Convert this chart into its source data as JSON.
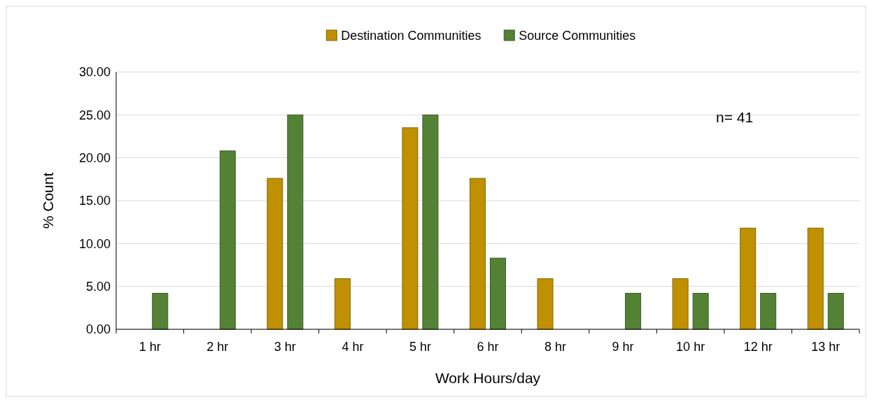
{
  "chart_data": {
    "type": "bar",
    "xlabel": "Work Hours/day",
    "ylabel": "% Count",
    "categories": [
      "1 hr",
      "2 hr",
      "3 hr",
      "4 hr",
      "5 hr",
      "6 hr",
      "8 hr",
      "9 hr",
      "10 hr",
      "12 hr",
      "13 hr"
    ],
    "series": [
      {
        "name": "Destination Communities",
        "color": "#bf9000",
        "values": [
          0,
          0,
          17.6,
          5.9,
          23.5,
          17.6,
          5.9,
          0,
          5.9,
          11.8,
          11.8
        ]
      },
      {
        "name": "Source Communities",
        "color": "#548235",
        "values": [
          4.2,
          20.8,
          25,
          0,
          25,
          8.3,
          0,
          4.2,
          4.2,
          4.2,
          4.2
        ]
      }
    ],
    "ylim": [
      0,
      30
    ],
    "yticks": [
      {
        "value": 0,
        "label": "0.00"
      },
      {
        "value": 5,
        "label": "5.00"
      },
      {
        "value": 10,
        "label": "10.00"
      },
      {
        "value": 15,
        "label": "15.00"
      },
      {
        "value": 20,
        "label": "20.00"
      },
      {
        "value": 25,
        "label": "25.00"
      },
      {
        "value": 30,
        "label": "30.00"
      }
    ],
    "grid": "y",
    "legend": "top",
    "annotations": [
      "n= 41"
    ]
  }
}
